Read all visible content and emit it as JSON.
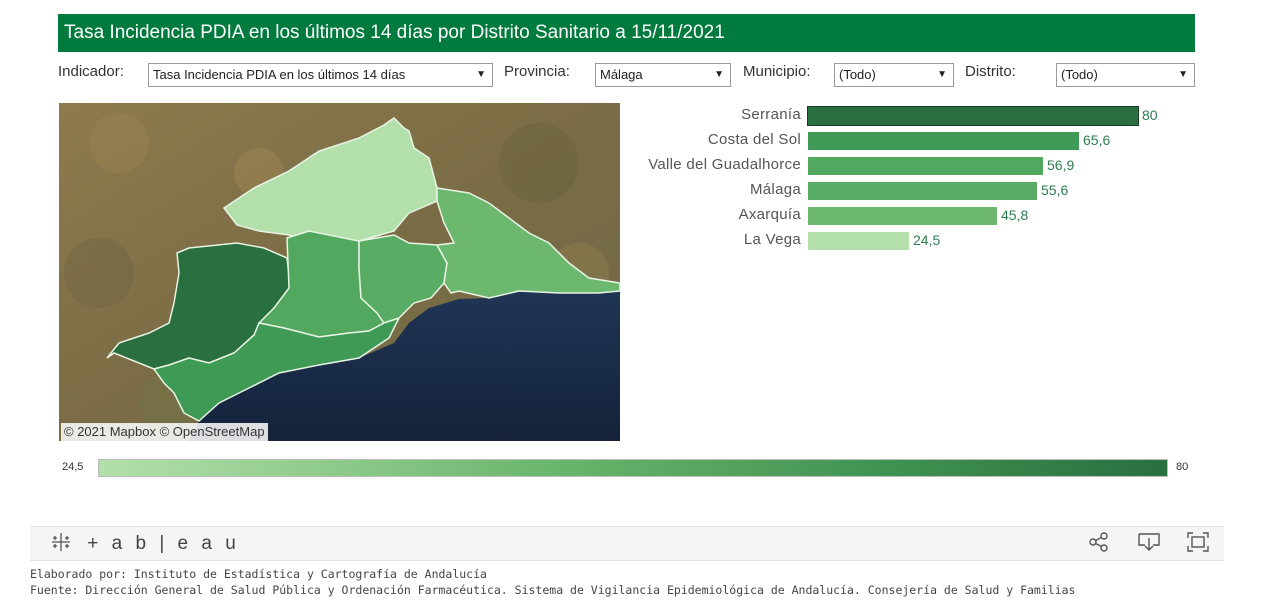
{
  "header": {
    "title": "Tasa Incidencia PDIA en los últimos 14 días por Distrito Sanitario a 15/11/2021"
  },
  "filters": {
    "indicador": {
      "label": "Indicador:",
      "value": "Tasa Incidencia PDIA en los últimos 14 días"
    },
    "provincia": {
      "label": "Provincia:",
      "value": "Málaga"
    },
    "municipio": {
      "label": "Municipio:",
      "value": "(Todo)"
    },
    "distrito": {
      "label": "Distrito:",
      "value": "(Todo)"
    }
  },
  "map": {
    "attribution": "© 2021 Mapbox  © OpenStreetMap"
  },
  "chart_data": {
    "type": "bar",
    "orientation": "horizontal",
    "categories": [
      "Serranía",
      "Costa del Sol",
      "Valle del Guadalhorce",
      "Málaga",
      "Axarquía",
      "La Vega"
    ],
    "values": [
      80,
      65.6,
      56.9,
      55.6,
      45.8,
      24.5
    ],
    "value_labels": [
      "80",
      "65,6",
      "56,9",
      "55,6",
      "45,8",
      "24,5"
    ],
    "colors": [
      "#2a6f40",
      "#3e9a55",
      "#53a860",
      "#58ac63",
      "#6cb86f",
      "#b3e0aa"
    ]
  },
  "legend": {
    "min_label": "24,5",
    "max_label": "80",
    "color_min": "#b3e0aa",
    "color_max": "#2a6f40"
  },
  "toolbar": {
    "logo_text": "+ab|eau",
    "icons": [
      "share-icon",
      "download-icon",
      "fullscreen-icon"
    ]
  },
  "credits": {
    "line1": "Elaborado por: Instituto de Estadística y Cartografía de Andalucía",
    "line2": "Fuente: Dirección General de Salud Pública y Ordenación Farmacéutica. Sistema de Vigilancia Epidemiológica de Andalucía. Consejería de Salud y Familias"
  }
}
